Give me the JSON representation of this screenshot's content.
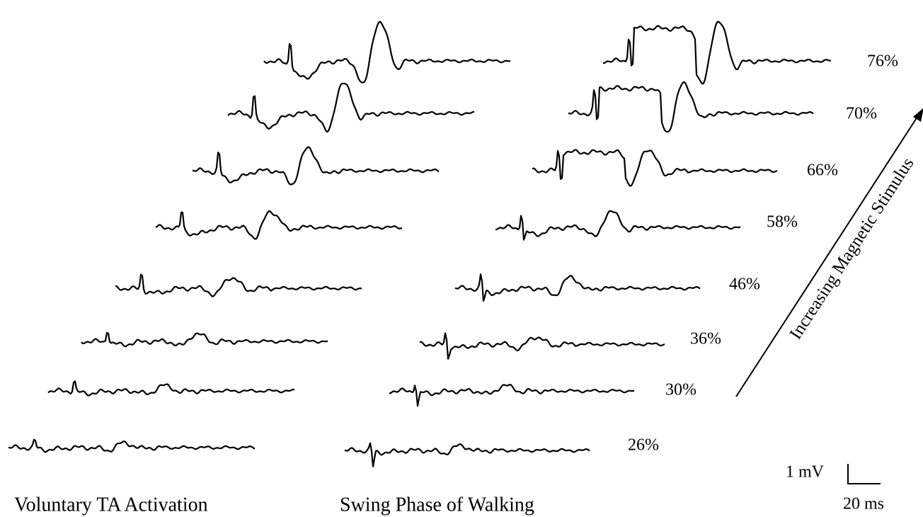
{
  "panels": [
    {
      "label": "Voluntary TA Activation"
    },
    {
      "label": "Swing Phase of Walking"
    }
  ],
  "stimulus_levels": [
    "76%",
    "70%",
    "66%",
    "58%",
    "46%",
    "36%",
    "30%",
    "26%"
  ],
  "arrow_label": "Increasing Magnetic Stimulus",
  "scale_bar": {
    "voltage": "1 mV",
    "time": "20 ms"
  }
}
